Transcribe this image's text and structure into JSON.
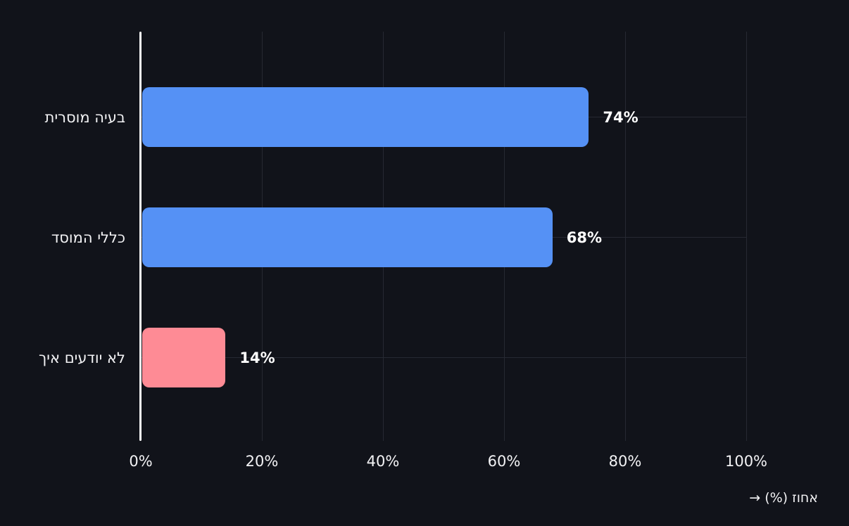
{
  "chart_data": {
    "type": "bar",
    "orientation": "horizontal",
    "title": "",
    "categories": [
      "בעיה מוסרית",
      "כללי המוסד",
      "לא יודעים איך"
    ],
    "values": [
      74,
      68,
      14
    ],
    "value_labels": [
      "74%",
      "68%",
      "14%"
    ],
    "bar_colors": [
      "#5591F5",
      "#5591F5",
      "#FE8B95"
    ],
    "xlabel": "אחוז (%) →",
    "ylabel": "",
    "x_ticks": [
      {
        "value": 0,
        "label": "0%"
      },
      {
        "value": 20,
        "label": "20%"
      },
      {
        "value": 40,
        "label": "40%"
      },
      {
        "value": 60,
        "label": "60%"
      },
      {
        "value": 80,
        "label": "80%"
      },
      {
        "value": 100,
        "label": "100%"
      }
    ],
    "xlim": [
      0,
      100
    ],
    "grid": true,
    "legend": false
  },
  "colors": {
    "background": "#11131A",
    "grid": "#262932",
    "axis": "#FCFCFC",
    "bar_blue": "#5591F5",
    "bar_pink": "#FE8B95",
    "text": "#F2F2F4",
    "value_text": "#FFFFFF"
  }
}
